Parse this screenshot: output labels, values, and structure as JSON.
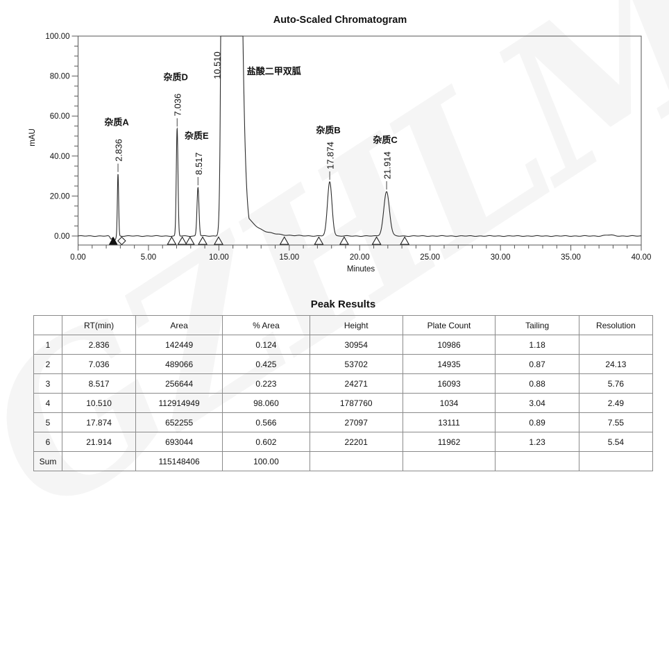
{
  "watermark": {
    "text": "GZHLM",
    "opacity": 0.055
  },
  "chart_data": {
    "type": "line",
    "title": "Auto-Scaled Chromatogram",
    "xlabel": "Minutes",
    "ylabel": "mAU",
    "xlim": [
      0,
      40
    ],
    "ylim": [
      0,
      100
    ],
    "x_major_step": 5,
    "x_minor_step": 1,
    "y_major_step": 20,
    "y_minor_step": 5,
    "x_tick_labels": [
      "0.00",
      "5.00",
      "10.00",
      "15.00",
      "20.00",
      "25.00",
      "30.00",
      "35.00",
      "40.00"
    ],
    "y_tick_labels": [
      "0.00",
      "20.00",
      "40.00",
      "60.00",
      "80.00",
      "100.00"
    ],
    "grid": false,
    "peaks": [
      {
        "name": "杂质A",
        "rt": 2.836,
        "height_mau": 31.0,
        "sigma": 0.045
      },
      {
        "name": "杂质D",
        "rt": 7.036,
        "height_mau": 53.7,
        "sigma": 0.06
      },
      {
        "name": "杂质E",
        "rt": 8.517,
        "height_mau": 24.3,
        "sigma": 0.07
      },
      {
        "name": "盐酸二甲双胍",
        "rt": 10.51,
        "height_mau": 1787.8,
        "sigma": 0.16,
        "sigma_right": 0.5,
        "tail_a": 0.03,
        "tail_tau": 0.9,
        "clipped": true
      },
      {
        "name": "杂质B",
        "rt": 17.874,
        "height_mau": 27.1,
        "sigma": 0.16
      },
      {
        "name": "杂质C",
        "rt": 21.914,
        "height_mau": 22.2,
        "sigma": 0.2
      }
    ],
    "baseline_features": [
      {
        "t": 2.35,
        "amp": -1.6,
        "sigma": 0.08
      },
      {
        "t": 2.62,
        "amp": -1.8,
        "sigma": 0.07
      },
      {
        "t": 37.7,
        "amp": 0.5,
        "sigma": 0.3
      }
    ],
    "integration_markers": {
      "filled_triangles": [
        2.5
      ],
      "diamonds": [
        3.1
      ],
      "open_triangles": [
        6.65,
        7.4,
        7.95,
        8.85,
        9.98,
        14.65,
        17.1,
        18.9,
        21.2,
        23.2
      ]
    }
  },
  "table": {
    "title": "Peak Results",
    "headers": [
      "",
      "RT(min)",
      "Area",
      "% Area",
      "Height",
      "Plate Count",
      "Tailing",
      "Resolution"
    ],
    "rows": [
      [
        "1",
        "2.836",
        "142449",
        "0.124",
        "30954",
        "10986",
        "1.18",
        ""
      ],
      [
        "2",
        "7.036",
        "489066",
        "0.425",
        "53702",
        "14935",
        "0.87",
        "24.13"
      ],
      [
        "3",
        "8.517",
        "256644",
        "0.223",
        "24271",
        "16093",
        "0.88",
        "5.76"
      ],
      [
        "4",
        "10.510",
        "112914949",
        "98.060",
        "1787760",
        "1034",
        "3.04",
        "2.49"
      ],
      [
        "5",
        "17.874",
        "652255",
        "0.566",
        "27097",
        "13111",
        "0.89",
        "7.55"
      ],
      [
        "6",
        "21.914",
        "693044",
        "0.602",
        "22201",
        "11962",
        "1.23",
        "5.54"
      ],
      [
        "Sum",
        "",
        "115148406",
        "100.00",
        "",
        "",
        "",
        ""
      ]
    ]
  }
}
